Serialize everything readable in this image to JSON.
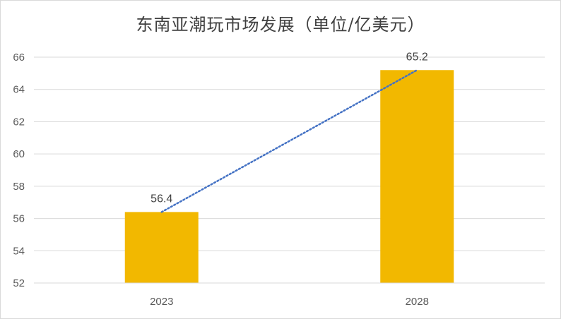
{
  "chart_data": {
    "type": "bar",
    "title": "东南亚潮玩市场发展（单位/亿美元）",
    "categories": [
      "2023",
      "2028"
    ],
    "values": [
      56.4,
      65.2
    ],
    "data_labels": [
      "56.4",
      "65.2"
    ],
    "ylim": [
      52,
      66
    ],
    "yticks": [
      52,
      54,
      56,
      58,
      60,
      62,
      64,
      66
    ],
    "ytick_labels": [
      "52",
      "54",
      "56",
      "58",
      "60",
      "62",
      "64",
      "66"
    ],
    "grid": true,
    "trendline": "dotted linear",
    "bar_color": "#f2b800",
    "trend_color": "#4472c4"
  }
}
